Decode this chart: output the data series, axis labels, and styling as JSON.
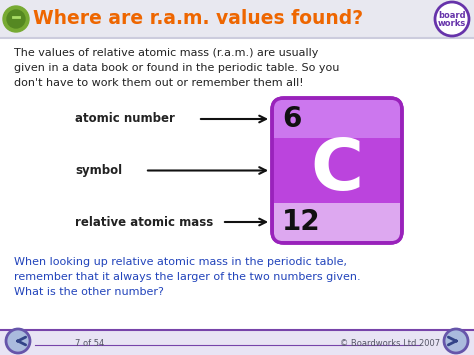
{
  "title": "Where are r.a.m. values found?",
  "title_color": "#ee6600",
  "title_fontsize": 13.5,
  "header_bg": "#e8e8f0",
  "body_bg": "#ffffff",
  "para1": "The values of relative atomic mass (r.a.m.) are usually\ngiven in a data book or found in the periodic table. So you\ndon't have to work them out or remember them all!",
  "para2": "When looking up relative atomic mass in the periodic table,\nremember that it always the larger of the two numbers given.",
  "para3": "What is the other number?",
  "label1": "atomic number",
  "label2": "symbol",
  "label3": "relative atomic mass",
  "element_symbol": "C",
  "atomic_number": "6",
  "atomic_mass": "12",
  "element_bg_dark": "#bb44dd",
  "element_bg_mid": "#cc77ee",
  "element_bg_light": "#dda8f0",
  "element_border": "#9922bb",
  "footer_bg": "#e8e4f4",
  "footer_line_color": "#7744aa",
  "footer_text1": "7 of 54",
  "footer_text2": "© Boardworks Ltd 2007",
  "text_color": "#222222",
  "blue_text_color": "#2244bb",
  "arrow_color": "#111111",
  "nav_circle_fill": "#aabbdd",
  "nav_circle_border": "#6655aa",
  "boardworks_circle_border": "#6633aa",
  "boardworks_text_color": "#6633aa"
}
